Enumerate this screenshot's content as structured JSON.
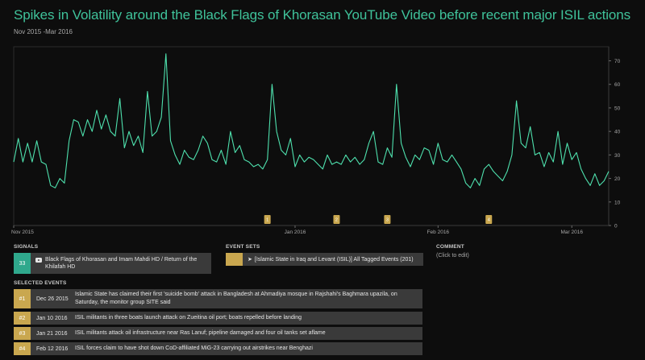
{
  "header": {
    "title": "Spikes in Volatility around the Black Flags of Khorasan YouTube Video before recent major ISIL actions",
    "subtitle": "Nov 2015 -Mar 2016"
  },
  "chart_data": {
    "type": "line",
    "title": "Spikes in Volatility around the Black Flags of Khorasan YouTube Video before recent major ISIL actions",
    "subtitle": "Nov 2015 -Mar 2016",
    "x_tick_labels": [
      "Nov 2015",
      "Jan 2016",
      "Feb 2016",
      "Mar 2016"
    ],
    "x_tick_positions_day": [
      0,
      61,
      92,
      121
    ],
    "y_ticks": [
      0,
      10,
      20,
      30,
      40,
      50,
      60,
      70
    ],
    "ylim": [
      0,
      76
    ],
    "xlim_days": [
      0,
      129
    ],
    "grid": false,
    "line_color": "#4ee0ad",
    "event_markers": [
      {
        "label": "1",
        "day": 55
      },
      {
        "label": "2",
        "day": 70
      },
      {
        "label": "3",
        "day": 81
      },
      {
        "label": "4",
        "day": 103
      }
    ],
    "series": [
      {
        "values": [
          27,
          37,
          27,
          35,
          27,
          36,
          27,
          26,
          17,
          16,
          20,
          18,
          36,
          45,
          44,
          38,
          45,
          40,
          49,
          41,
          47,
          40,
          38,
          54,
          33,
          40,
          34,
          38,
          31,
          57,
          38,
          40,
          46,
          73,
          36,
          30,
          26,
          32,
          29,
          28,
          32,
          38,
          35,
          28,
          27,
          32,
          26,
          40,
          31,
          34,
          28,
          27,
          25,
          26,
          24,
          28,
          60,
          40,
          32,
          30,
          37,
          25,
          30,
          27,
          29,
          28,
          26,
          24,
          30,
          26,
          27,
          26,
          30,
          27,
          29,
          26,
          28,
          35,
          40,
          27,
          26,
          33,
          29,
          60,
          35,
          29,
          25,
          30,
          28,
          33,
          32,
          26,
          35,
          28,
          27,
          30,
          27,
          24,
          18,
          16,
          20,
          17,
          24,
          26,
          23,
          21,
          19,
          23,
          30,
          53,
          35,
          33,
          42,
          30,
          31,
          25,
          31,
          27,
          40,
          26,
          35,
          28,
          31,
          24,
          20,
          17,
          22,
          17,
          19,
          23
        ]
      }
    ]
  },
  "sections": {
    "signals_label": "SIGNALS",
    "eventsets_label": "EVENT SETS",
    "comment_label": "COMMENT",
    "selected_label": "SELECTED EVENTS"
  },
  "signal": {
    "count": "33",
    "icon": "youtube-icon",
    "name": "Black Flags of Khorasan and Imam Mahdi HD / Return of the Khilafah HD"
  },
  "eventset": {
    "color": "#c9a74f",
    "icon": "pin-icon",
    "name": "[Islamic State in Iraq and Levant (ISIL)] All Tagged Events (201)"
  },
  "comment": {
    "placeholder": "(Click to edit)"
  },
  "events": [
    {
      "num": "#1",
      "date": "Dec 26 2015",
      "text": "Islamic State has claimed their first 'suicide bomb' attack in Bangladesh at Ahmadiya mosque in Rajshahi's Baghmara upazila, on Saturday, the monitor group SITE said"
    },
    {
      "num": "#2",
      "date": "Jan 10 2016",
      "text": "ISIL militants in three boats launch attack on Zueitina oil port; boats repelled before landing"
    },
    {
      "num": "#3",
      "date": "Jan 21 2016",
      "text": "ISIL militants attack oil infrastructure near Ras Lanuf; pipeline damaged and four oil tanks set aflame"
    },
    {
      "num": "#4",
      "date": "Feb 12 2016",
      "text": "ISIL forces claim to have shot down CoD-affiliated MiG-23 carrying out airstrikes near Benghazi"
    }
  ]
}
